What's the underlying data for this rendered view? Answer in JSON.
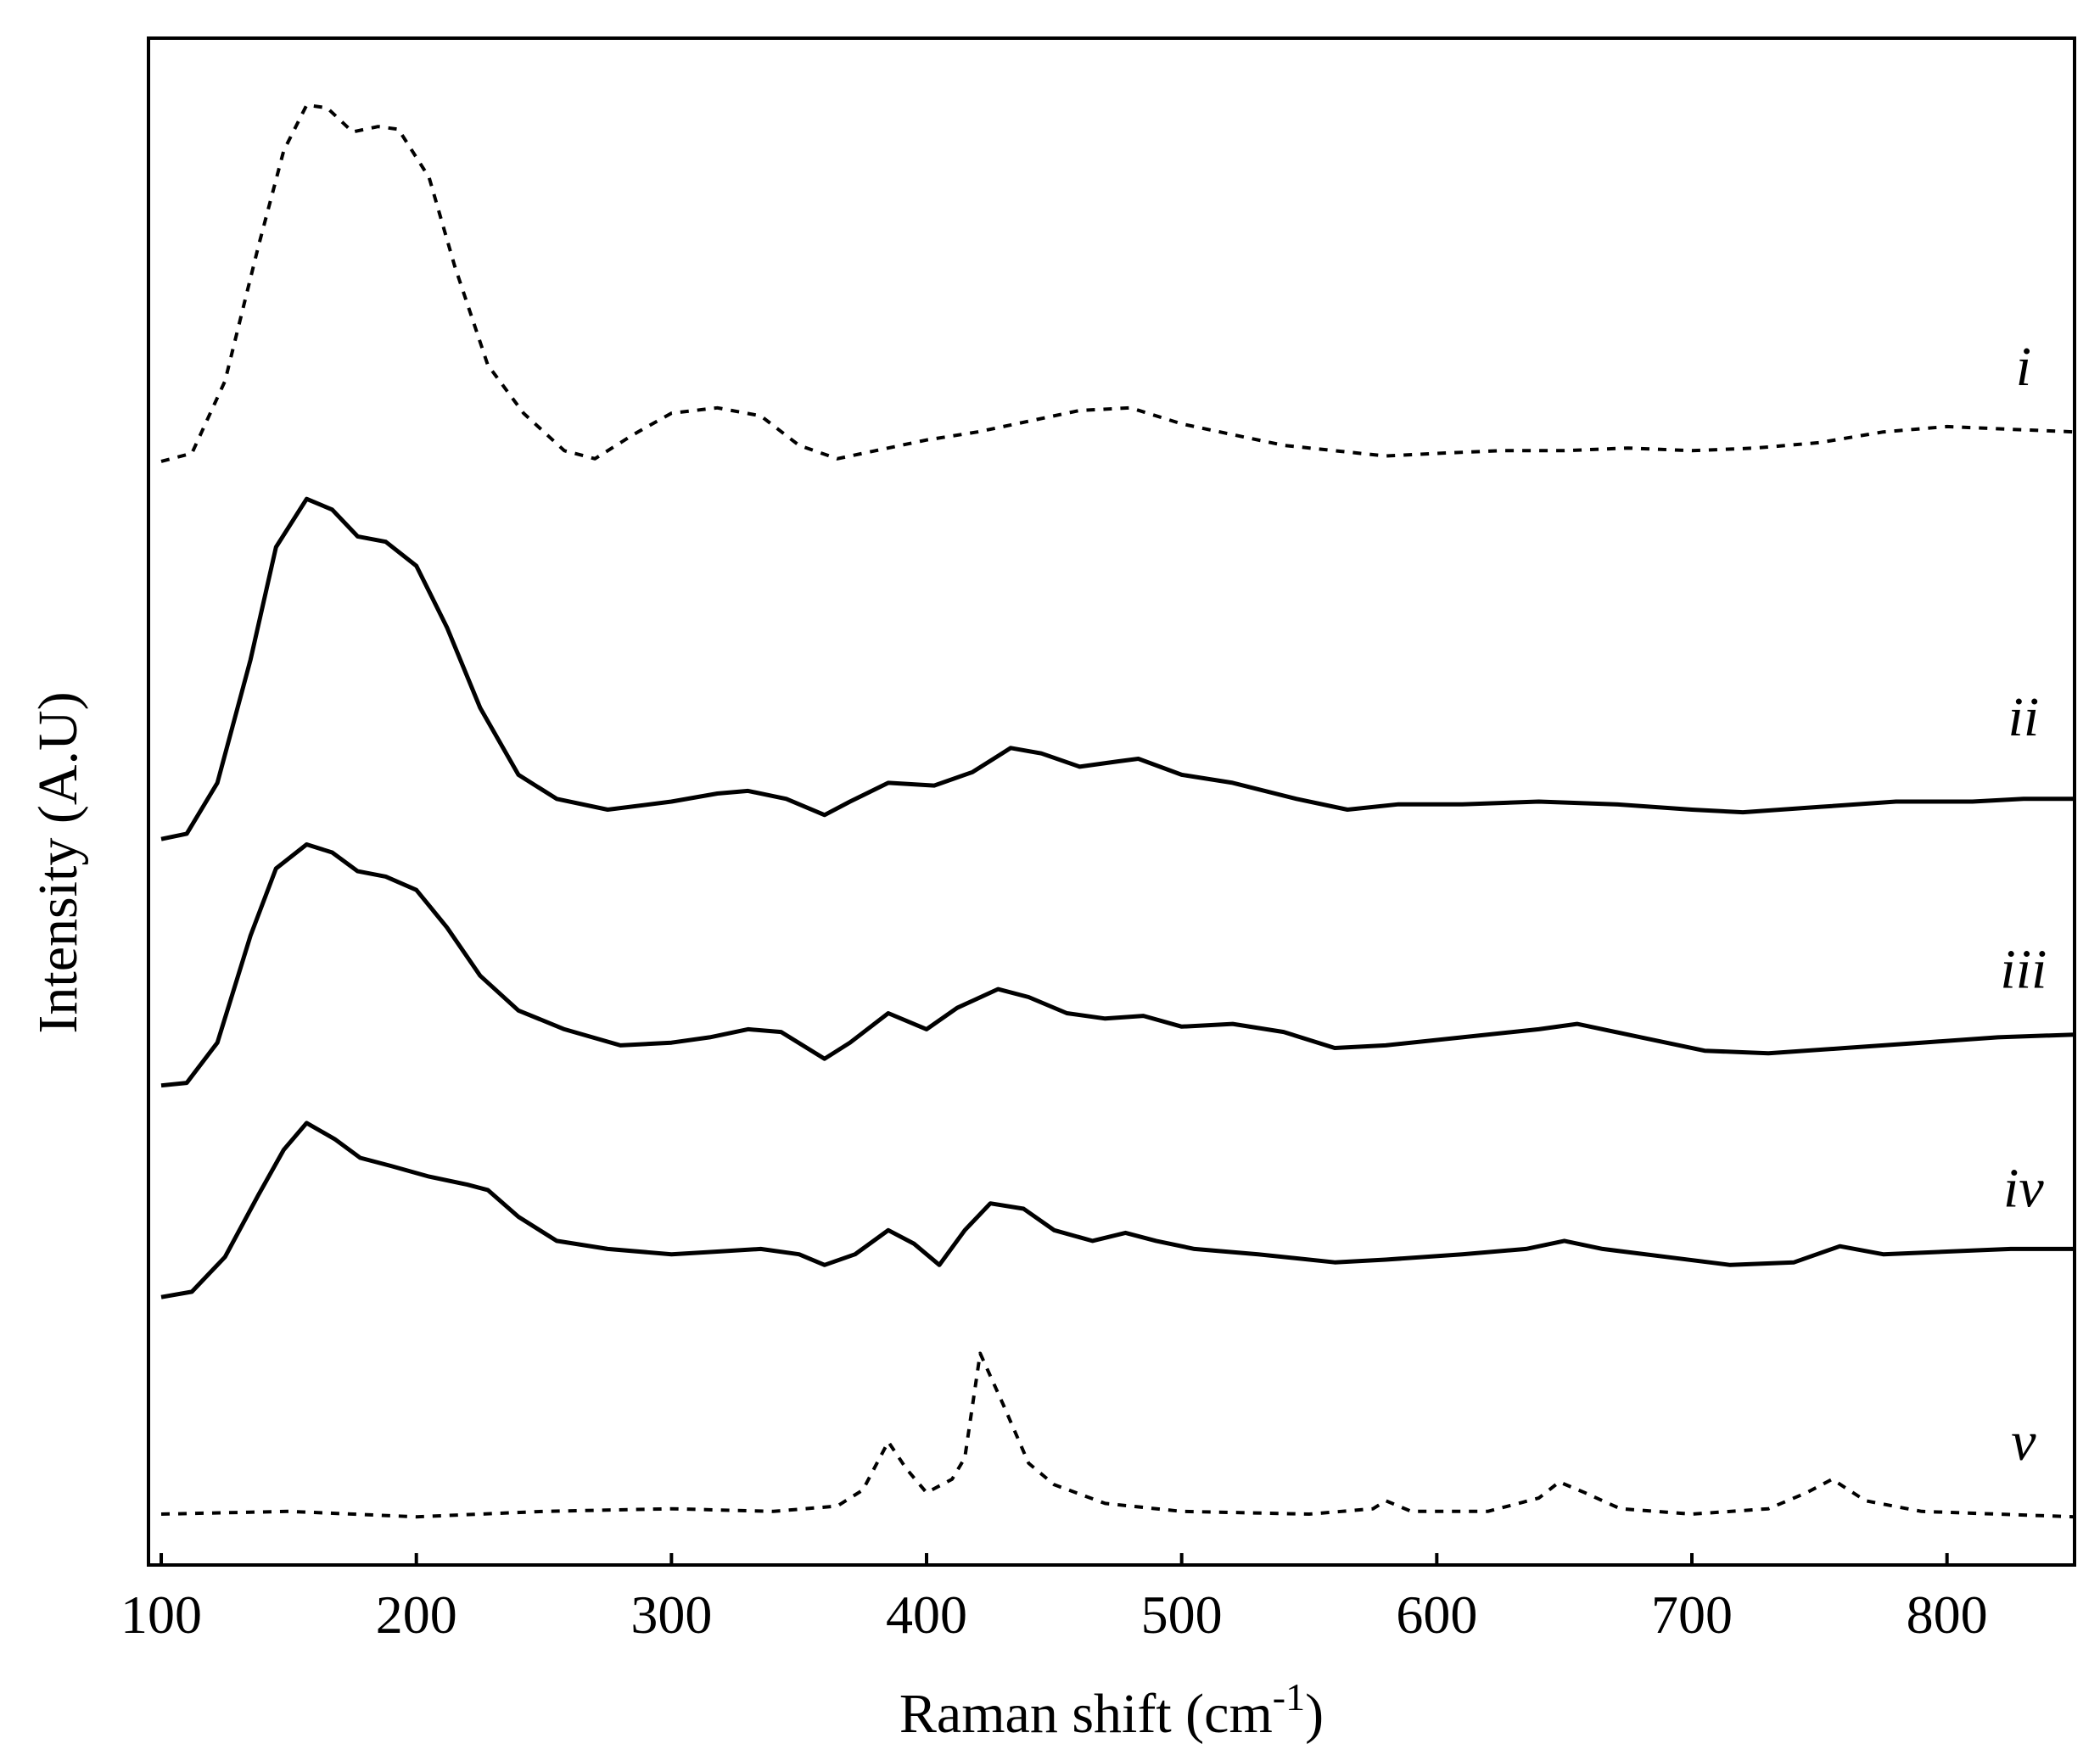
{
  "chart_data": {
    "type": "line",
    "title": "",
    "xlabel": "Raman shift (cm",
    "xlabel_superscript": "-1",
    "xlabel_suffix": ")",
    "ylabel": "Intensity (A.U)",
    "xlim": [
      95,
      850
    ],
    "ylim": [
      0,
      5.7
    ],
    "grid": false,
    "yticks_shown": false,
    "xticks": [
      100,
      200,
      300,
      400,
      500,
      600,
      700,
      800
    ],
    "xtick_labels": [
      "100",
      "200",
      "300",
      "400",
      "500",
      "600",
      "700",
      "800"
    ],
    "series_styles": {
      "dashed": "#000000",
      "solid": "#000000"
    },
    "series": [
      {
        "name": "i",
        "style": "dashed",
        "points": [
          [
            100,
            4.12
          ],
          [
            112,
            4.15
          ],
          [
            125,
            4.42
          ],
          [
            138,
            4.92
          ],
          [
            148,
            5.28
          ],
          [
            157,
            5.45
          ],
          [
            165,
            5.44
          ],
          [
            175,
            5.35
          ],
          [
            185,
            5.37
          ],
          [
            193,
            5.36
          ],
          [
            205,
            5.18
          ],
          [
            215,
            4.85
          ],
          [
            228,
            4.48
          ],
          [
            242,
            4.3
          ],
          [
            258,
            4.16
          ],
          [
            270,
            4.13
          ],
          [
            285,
            4.22
          ],
          [
            300,
            4.3
          ],
          [
            318,
            4.32
          ],
          [
            335,
            4.29
          ],
          [
            350,
            4.18
          ],
          [
            365,
            4.13
          ],
          [
            380,
            4.16
          ],
          [
            400,
            4.2
          ],
          [
            420,
            4.23
          ],
          [
            440,
            4.27
          ],
          [
            460,
            4.31
          ],
          [
            480,
            4.32
          ],
          [
            500,
            4.26
          ],
          [
            520,
            4.22
          ],
          [
            540,
            4.18
          ],
          [
            560,
            4.16
          ],
          [
            580,
            4.14
          ],
          [
            600,
            4.15
          ],
          [
            625,
            4.16
          ],
          [
            650,
            4.16
          ],
          [
            675,
            4.17
          ],
          [
            700,
            4.16
          ],
          [
            725,
            4.17
          ],
          [
            750,
            4.19
          ],
          [
            775,
            4.23
          ],
          [
            800,
            4.25
          ],
          [
            825,
            4.24
          ],
          [
            850,
            4.23
          ]
        ]
      },
      {
        "name": "ii",
        "style": "solid",
        "points": [
          [
            100,
            2.71
          ],
          [
            110,
            2.73
          ],
          [
            122,
            2.92
          ],
          [
            135,
            3.38
          ],
          [
            145,
            3.8
          ],
          [
            157,
            3.98
          ],
          [
            167,
            3.94
          ],
          [
            177,
            3.84
          ],
          [
            188,
            3.82
          ],
          [
            200,
            3.73
          ],
          [
            212,
            3.5
          ],
          [
            225,
            3.2
          ],
          [
            240,
            2.95
          ],
          [
            255,
            2.86
          ],
          [
            275,
            2.82
          ],
          [
            300,
            2.85
          ],
          [
            318,
            2.88
          ],
          [
            330,
            2.89
          ],
          [
            345,
            2.86
          ],
          [
            360,
            2.8
          ],
          [
            370,
            2.85
          ],
          [
            385,
            2.92
          ],
          [
            403,
            2.91
          ],
          [
            418,
            2.96
          ],
          [
            433,
            3.05
          ],
          [
            445,
            3.03
          ],
          [
            460,
            2.98
          ],
          [
            475,
            3.0
          ],
          [
            483,
            3.01
          ],
          [
            500,
            2.95
          ],
          [
            520,
            2.92
          ],
          [
            545,
            2.86
          ],
          [
            565,
            2.82
          ],
          [
            585,
            2.84
          ],
          [
            610,
            2.84
          ],
          [
            640,
            2.85
          ],
          [
            670,
            2.84
          ],
          [
            700,
            2.82
          ],
          [
            720,
            2.81
          ],
          [
            750,
            2.83
          ],
          [
            780,
            2.85
          ],
          [
            810,
            2.85
          ],
          [
            830,
            2.86
          ],
          [
            850,
            2.86
          ]
        ]
      },
      {
        "name": "iii",
        "style": "solid",
        "points": [
          [
            100,
            1.79
          ],
          [
            110,
            1.8
          ],
          [
            122,
            1.95
          ],
          [
            135,
            2.35
          ],
          [
            145,
            2.6
          ],
          [
            157,
            2.69
          ],
          [
            167,
            2.66
          ],
          [
            177,
            2.59
          ],
          [
            188,
            2.57
          ],
          [
            200,
            2.52
          ],
          [
            212,
            2.38
          ],
          [
            225,
            2.2
          ],
          [
            240,
            2.07
          ],
          [
            258,
            2.0
          ],
          [
            280,
            1.94
          ],
          [
            300,
            1.95
          ],
          [
            315,
            1.97
          ],
          [
            330,
            2.0
          ],
          [
            343,
            1.99
          ],
          [
            360,
            1.89
          ],
          [
            370,
            1.95
          ],
          [
            385,
            2.06
          ],
          [
            400,
            2.0
          ],
          [
            412,
            2.08
          ],
          [
            428,
            2.15
          ],
          [
            440,
            2.12
          ],
          [
            455,
            2.06
          ],
          [
            470,
            2.04
          ],
          [
            485,
            2.05
          ],
          [
            500,
            2.01
          ],
          [
            520,
            2.02
          ],
          [
            540,
            1.99
          ],
          [
            560,
            1.93
          ],
          [
            580,
            1.94
          ],
          [
            610,
            1.97
          ],
          [
            640,
            2.0
          ],
          [
            655,
            2.02
          ],
          [
            680,
            1.97
          ],
          [
            705,
            1.92
          ],
          [
            730,
            1.91
          ],
          [
            760,
            1.93
          ],
          [
            790,
            1.95
          ],
          [
            820,
            1.97
          ],
          [
            850,
            1.98
          ]
        ]
      },
      {
        "name": "iv",
        "style": "solid",
        "points": [
          [
            100,
            1.0
          ],
          [
            112,
            1.02
          ],
          [
            125,
            1.15
          ],
          [
            138,
            1.38
          ],
          [
            148,
            1.55
          ],
          [
            157,
            1.65
          ],
          [
            168,
            1.59
          ],
          [
            178,
            1.52
          ],
          [
            190,
            1.49
          ],
          [
            205,
            1.45
          ],
          [
            220,
            1.42
          ],
          [
            228,
            1.4
          ],
          [
            240,
            1.3
          ],
          [
            255,
            1.21
          ],
          [
            275,
            1.18
          ],
          [
            300,
            1.16
          ],
          [
            318,
            1.17
          ],
          [
            335,
            1.18
          ],
          [
            350,
            1.16
          ],
          [
            360,
            1.12
          ],
          [
            372,
            1.16
          ],
          [
            385,
            1.25
          ],
          [
            395,
            1.2
          ],
          [
            405,
            1.12
          ],
          [
            415,
            1.25
          ],
          [
            425,
            1.35
          ],
          [
            438,
            1.33
          ],
          [
            450,
            1.25
          ],
          [
            465,
            1.21
          ],
          [
            478,
            1.24
          ],
          [
            490,
            1.21
          ],
          [
            505,
            1.18
          ],
          [
            530,
            1.16
          ],
          [
            560,
            1.13
          ],
          [
            580,
            1.14
          ],
          [
            610,
            1.16
          ],
          [
            635,
            1.18
          ],
          [
            650,
            1.21
          ],
          [
            665,
            1.18
          ],
          [
            690,
            1.15
          ],
          [
            715,
            1.12
          ],
          [
            740,
            1.13
          ],
          [
            758,
            1.19
          ],
          [
            775,
            1.16
          ],
          [
            800,
            1.17
          ],
          [
            825,
            1.18
          ],
          [
            850,
            1.18
          ]
        ]
      },
      {
        "name": "v",
        "style": "dashed",
        "points": [
          [
            100,
            0.19
          ],
          [
            150,
            0.2
          ],
          [
            200,
            0.18
          ],
          [
            250,
            0.2
          ],
          [
            300,
            0.21
          ],
          [
            340,
            0.2
          ],
          [
            365,
            0.22
          ],
          [
            375,
            0.28
          ],
          [
            385,
            0.46
          ],
          [
            392,
            0.36
          ],
          [
            400,
            0.27
          ],
          [
            410,
            0.32
          ],
          [
            415,
            0.4
          ],
          [
            421,
            0.79
          ],
          [
            430,
            0.6
          ],
          [
            440,
            0.38
          ],
          [
            450,
            0.3
          ],
          [
            470,
            0.23
          ],
          [
            500,
            0.2
          ],
          [
            550,
            0.19
          ],
          [
            575,
            0.21
          ],
          [
            580,
            0.24
          ],
          [
            590,
            0.2
          ],
          [
            620,
            0.2
          ],
          [
            640,
            0.25
          ],
          [
            648,
            0.31
          ],
          [
            658,
            0.27
          ],
          [
            672,
            0.21
          ],
          [
            700,
            0.19
          ],
          [
            730,
            0.21
          ],
          [
            745,
            0.27
          ],
          [
            755,
            0.32
          ],
          [
            768,
            0.24
          ],
          [
            790,
            0.2
          ],
          [
            820,
            0.19
          ],
          [
            850,
            0.18
          ]
        ]
      }
    ]
  }
}
